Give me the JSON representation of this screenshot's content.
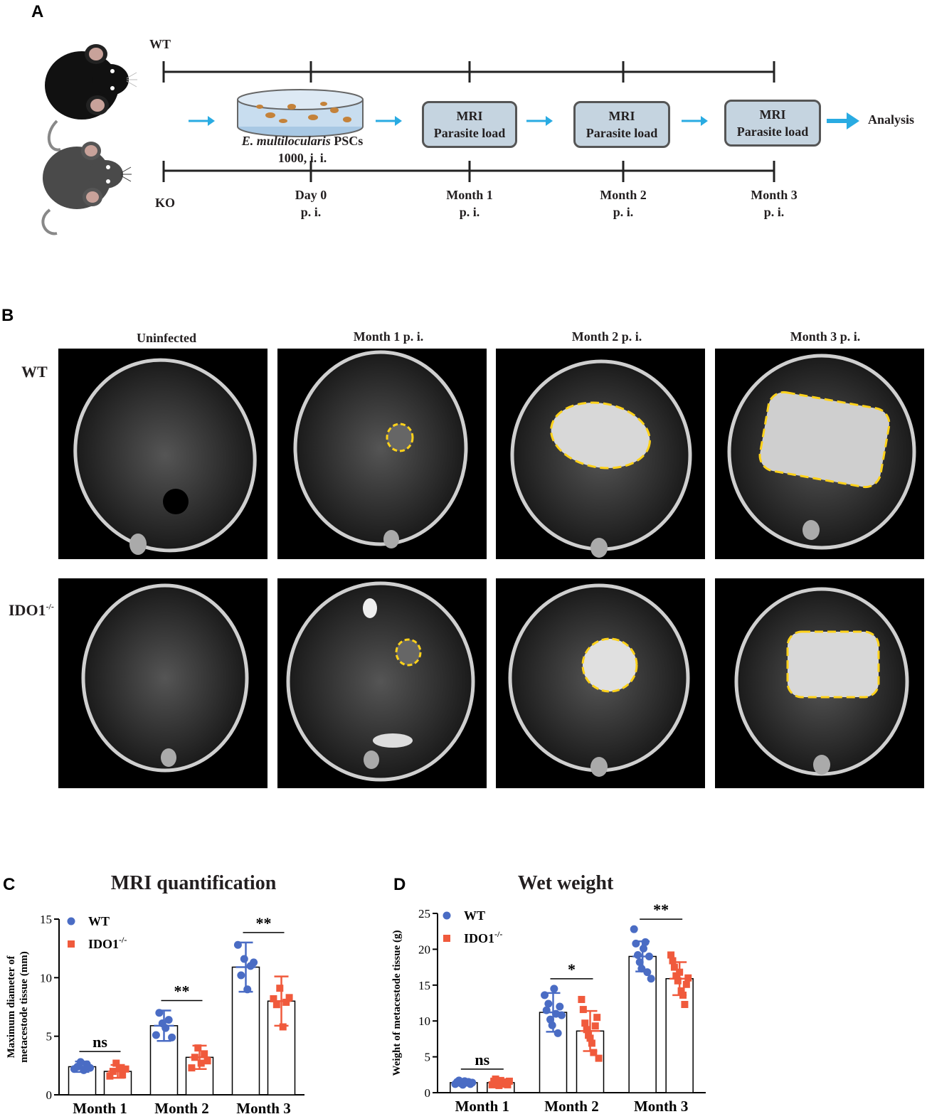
{
  "panels": {
    "a": "A",
    "b": "B",
    "c": "C",
    "d": "D"
  },
  "timeline": {
    "wt_label": "WT",
    "ko_label": "KO",
    "infection_species": "E. multilocularis",
    "infection_suffix": " PSCs",
    "infection_dose": "1000, i. i.",
    "mri_box_line1": "MRI",
    "mri_box_line2": "Parasite load",
    "analysis": "Analysis",
    "timepoints": [
      {
        "line1": "Day 0",
        "line2": "p. i."
      },
      {
        "line1": "Month 1",
        "line2": "p. i."
      },
      {
        "line1": "Month 2",
        "line2": "p. i."
      },
      {
        "line1": "Month 3",
        "line2": "p. i."
      }
    ],
    "colors": {
      "arrow": "#29abe2",
      "box_fill": "#c5d4e0",
      "box_border": "#555555",
      "line": "#222222"
    }
  },
  "mri_panel": {
    "column_titles": [
      "Uninfected",
      "Month 1 p. i.",
      "Month 2 p. i.",
      "Month 3 p. i."
    ],
    "row_labels": [
      {
        "main": "WT",
        "sup": ""
      },
      {
        "main": "IDO1",
        "sup": "-/-"
      }
    ],
    "highlight_color": "#ffd21a"
  },
  "chart_data": [
    {
      "type": "bar",
      "title": "MRI quantification",
      "ylabel_line1": "Maximum diameter of",
      "ylabel_line2": "metacestode tissue (mm)",
      "categories": [
        "Month 1",
        "Month 2",
        "Month 3"
      ],
      "ylim": [
        0,
        15
      ],
      "yticks": [
        0,
        5,
        10,
        15
      ],
      "legend_placement": "top-left",
      "series": [
        {
          "name": "WT",
          "name_sup": "",
          "color": "#4a6cc4",
          "marker": "circle",
          "values": [
            2.4,
            5.9,
            10.9
          ],
          "sd": [
            0.45,
            1.3,
            2.1
          ],
          "points": [
            [
              2.2,
              2.4,
              2.8,
              2.1,
              2.6,
              2.3
            ],
            [
              5.1,
              7.0,
              6.1,
              5.7,
              6.4,
              4.9
            ],
            [
              12.8,
              10.2,
              11.6,
              9.0,
              11.0,
              11.3
            ]
          ]
        },
        {
          "name": "IDO1",
          "name_sup": "-/-",
          "color": "#f05a3c",
          "marker": "square",
          "values": [
            2.0,
            3.2,
            8.0
          ],
          "sd": [
            0.55,
            1.0,
            2.1
          ],
          "points": [
            [
              1.6,
              2.0,
              2.7,
              2.3,
              1.7,
              2.2
            ],
            [
              2.3,
              3.2,
              4.0,
              2.7,
              3.5,
              2.9
            ],
            [
              8.2,
              7.7,
              9.1,
              5.8,
              7.9,
              8.3
            ]
          ]
        }
      ],
      "significance": [
        "ns",
        "**",
        "**"
      ]
    },
    {
      "type": "bar",
      "title": "Wet weight",
      "ylabel_line1": "Weight of metacestode tissue (g)",
      "ylabel_line2": "",
      "categories": [
        "Month 1",
        "Month 2",
        "Month 3"
      ],
      "ylim": [
        0,
        25
      ],
      "yticks": [
        0,
        5,
        10,
        15,
        20,
        25
      ],
      "legend_placement": "top-left",
      "series": [
        {
          "name": "WT",
          "name_sup": "",
          "color": "#4a6cc4",
          "marker": "circle",
          "values": [
            1.4,
            11.2,
            19.0
          ],
          "sd": [
            0.35,
            2.7,
            2.1
          ],
          "points": [
            [
              1.2,
              1.5,
              1.7,
              1.3,
              1.1,
              1.6,
              1.4,
              1.5,
              1.2,
              1.4
            ],
            [
              13.6,
              11.5,
              12.4,
              10.2,
              9.4,
              14.5,
              11.0,
              8.3,
              12.0,
              10.8
            ],
            [
              22.8,
              20.8,
              19.2,
              18.2,
              17.3,
              20.1,
              21.0,
              16.8,
              19.0,
              15.9
            ]
          ]
        },
        {
          "name": "IDO1",
          "name_sup": "-/-",
          "color": "#f05a3c",
          "marker": "square",
          "values": [
            1.4,
            8.6,
            15.9
          ],
          "sd": [
            0.45,
            2.8,
            2.3
          ],
          "points": [
            [
              1.1,
              1.6,
              1.9,
              1.3,
              1.0,
              1.7,
              1.2,
              1.5,
              1.4,
              1.1,
              1.6
            ],
            [
              13.0,
              11.6,
              9.7,
              8.8,
              8.0,
              7.6,
              6.9,
              5.6,
              9.3,
              10.5,
              4.8
            ],
            [
              19.2,
              18.4,
              17.5,
              16.3,
              15.6,
              16.8,
              14.2,
              13.6,
              12.3,
              15.1,
              16.0
            ]
          ]
        }
      ],
      "significance": [
        "ns",
        "*",
        "**"
      ]
    }
  ]
}
